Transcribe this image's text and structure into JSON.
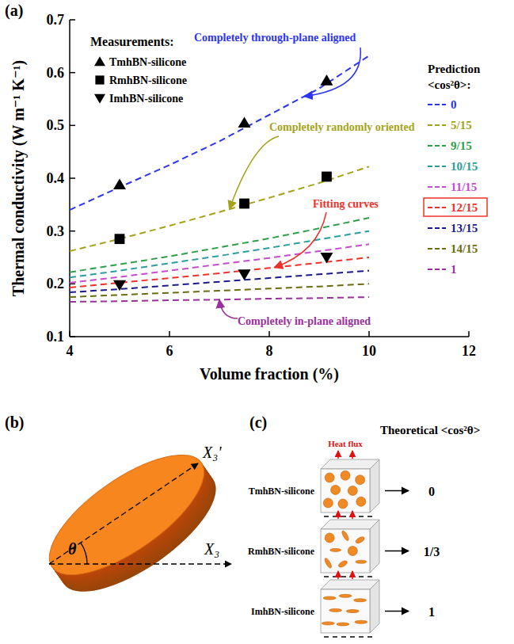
{
  "chart_data": {
    "type": "line",
    "panel_label": "(a)",
    "x_label": "Volume fraction (%)",
    "y_label": "Thermal conductivity (W m⁻¹ K⁻¹)",
    "xlim": [
      4,
      12
    ],
    "xticks": [
      4,
      6,
      8,
      10,
      12
    ],
    "ylim": [
      0.1,
      0.7
    ],
    "yticks": [
      0.1,
      0.2,
      0.3,
      0.4,
      0.5,
      0.6,
      0.7
    ],
    "measurements_title": "Measurements:",
    "prediction_title": "Prediction",
    "prediction_subtitle": "<cos²θ>:",
    "series": [
      {
        "name": "TmhBN-silicone",
        "type": "scatter",
        "marker": "triangle-up",
        "color": "#000000",
        "x": [
          5,
          7.5,
          9.15
        ],
        "values": [
          0.388,
          0.505,
          0.585
        ]
      },
      {
        "name": "RmhBN-silicone",
        "type": "scatter",
        "marker": "square",
        "color": "#000000",
        "x": [
          5,
          7.5,
          9.15
        ],
        "values": [
          0.285,
          0.352,
          0.403
        ]
      },
      {
        "name": "ImhBN-silicone",
        "type": "scatter",
        "marker": "triangle-down",
        "color": "#000000",
        "x": [
          5,
          7.5,
          9.15
        ],
        "values": [
          0.198,
          0.218,
          0.25
        ]
      },
      {
        "name": "0",
        "type": "line",
        "line_style": "dashed",
        "color": "#2b35f0",
        "x": [
          4,
          5,
          6,
          7,
          8,
          9,
          10
        ],
        "values": [
          0.34,
          0.383,
          0.425,
          0.47,
          0.52,
          0.57,
          0.632
        ]
      },
      {
        "name": "5/15",
        "type": "line",
        "line_style": "dashed",
        "color": "#a3a31a",
        "x": [
          4,
          5,
          6,
          7,
          8,
          9,
          10
        ],
        "values": [
          0.262,
          0.285,
          0.31,
          0.336,
          0.363,
          0.391,
          0.422
        ]
      },
      {
        "name": "9/15",
        "type": "line",
        "line_style": "dashed",
        "color": "#2e9e4a",
        "x": [
          4,
          5,
          6,
          7,
          8,
          9,
          10
        ],
        "values": [
          0.222,
          0.237,
          0.252,
          0.269,
          0.286,
          0.305,
          0.325
        ]
      },
      {
        "name": "10/15",
        "type": "line",
        "line_style": "dashed",
        "color": "#2a9d9d",
        "x": [
          4,
          5,
          6,
          7,
          8,
          9,
          10
        ],
        "values": [
          0.212,
          0.225,
          0.239,
          0.253,
          0.268,
          0.284,
          0.3
        ]
      },
      {
        "name": "11/15",
        "type": "line",
        "line_style": "dashed",
        "color": "#c54bd0",
        "x": [
          4,
          5,
          6,
          7,
          8,
          9,
          10
        ],
        "values": [
          0.202,
          0.213,
          0.225,
          0.237,
          0.249,
          0.262,
          0.275
        ]
      },
      {
        "name": "12/15",
        "type": "line",
        "line_style": "dashed",
        "color": "#f0302a",
        "x": [
          4,
          5,
          6,
          7,
          8,
          9,
          10
        ],
        "values": [
          0.193,
          0.202,
          0.211,
          0.22,
          0.23,
          0.24,
          0.25
        ]
      },
      {
        "name": "13/15",
        "type": "line",
        "line_style": "dashed",
        "color": "#1a1a8c",
        "x": [
          4,
          5,
          6,
          7,
          8,
          9,
          10
        ],
        "values": [
          0.184,
          0.19,
          0.197,
          0.204,
          0.211,
          0.218,
          0.225
        ]
      },
      {
        "name": "14/15",
        "type": "line",
        "line_style": "dashed",
        "color": "#6b6b12",
        "x": [
          4,
          5,
          6,
          7,
          8,
          9,
          10
        ],
        "values": [
          0.175,
          0.179,
          0.183,
          0.187,
          0.191,
          0.195,
          0.2
        ]
      },
      {
        "name": "1",
        "type": "line",
        "line_style": "dashed",
        "color": "#9b2f9b",
        "x": [
          4,
          5,
          6,
          7,
          8,
          9,
          10
        ],
        "values": [
          0.166,
          0.167,
          0.169,
          0.17,
          0.172,
          0.173,
          0.175
        ]
      }
    ],
    "annotations": [
      {
        "text": "Completely through-plane aligned",
        "type": "arrow",
        "color": "#2b35f0",
        "target": "0",
        "x": 8.7
      },
      {
        "text": "Completely randomly oriented",
        "type": "arrow",
        "color": "#a3a31a",
        "target": "5/15",
        "x": 7.2
      },
      {
        "text": "Fitting curves",
        "type": "highlight",
        "color": "#f0302a",
        "target": "12/15",
        "x": 8.1
      },
      {
        "text": "Completely in-plane aligned",
        "type": "arrow",
        "color": "#9b2f9b",
        "target": "1",
        "x": 7.0
      }
    ]
  },
  "diagram_b": {
    "label": "(b)",
    "axis_rotated": "X₃'",
    "axis": "X₃",
    "angle": "θ"
  },
  "diagram_c": {
    "label": "(c)",
    "title": "Theoretical <cos²θ>",
    "heat_flux": "Heat flux",
    "rows": [
      {
        "name": "TmhBN-silicone",
        "value": "0",
        "orientation": "through-plane"
      },
      {
        "name": "RmhBN-silicone",
        "value": "1/3",
        "orientation": "random"
      },
      {
        "name": "ImhBN-silicone",
        "value": "1",
        "orientation": "in-plane"
      }
    ]
  }
}
